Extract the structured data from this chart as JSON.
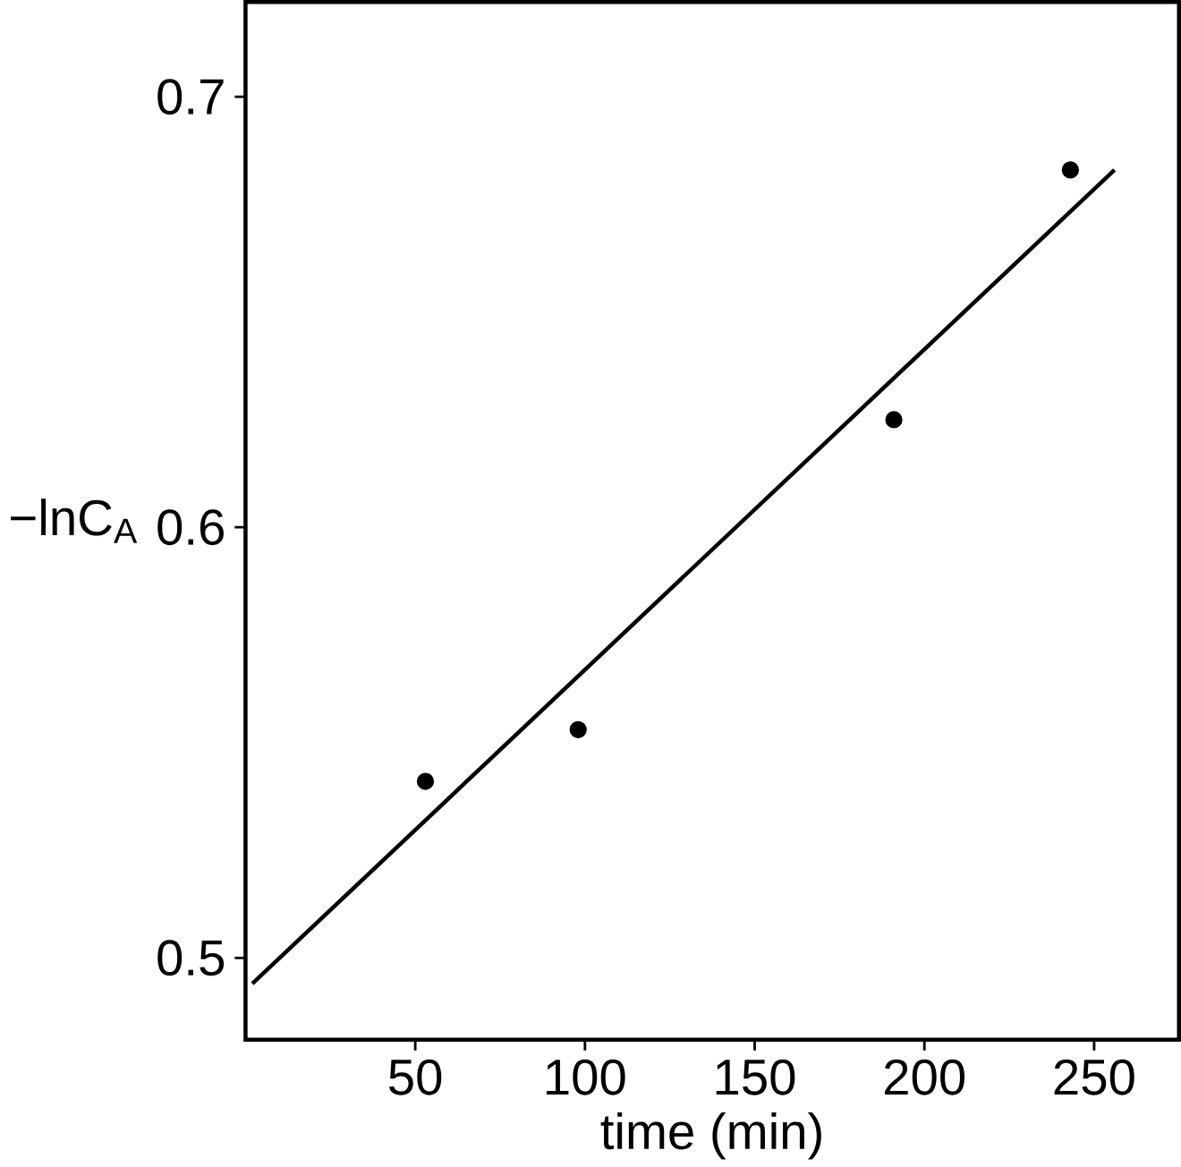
{
  "chart_data": {
    "type": "scatter",
    "xlabel": "time (min)",
    "ylabel": "−lnC$_{A}$",
    "xlim": [
      0,
      275
    ],
    "ylim": [
      0.481,
      0.722
    ],
    "xticks": [
      50,
      100,
      150,
      200,
      250
    ],
    "yticks": [
      {
        "value": 0.5,
        "label": "0.5"
      },
      {
        "value": 0.6,
        "label": "0.6"
      },
      {
        "value": 0.7,
        "label": "0.7"
      }
    ],
    "grid": false,
    "series": [
      {
        "color": "#000000",
        "marker": "circle",
        "x": [
          53,
          98,
          191,
          243
        ],
        "values": [
          0.541,
          0.553,
          0.625,
          0.683
        ]
      },
      {
        "type": "line",
        "color": "#000000",
        "marker": "none",
        "line_style": "solid",
        "x": [
          2,
          256
        ],
        "values": [
          0.494,
          0.683
        ]
      }
    ]
  }
}
